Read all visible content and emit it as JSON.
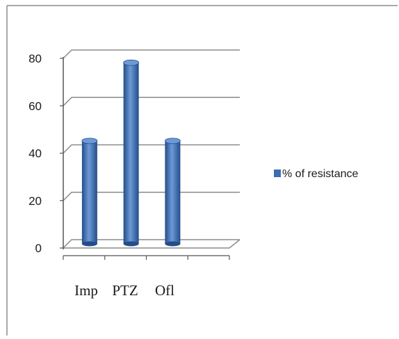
{
  "chart_data": {
    "type": "bar",
    "categories": [
      "Imp",
      "PTZ",
      "Ofl"
    ],
    "series": [
      {
        "name": "% of resistance",
        "values": [
          44,
          77,
          44
        ]
      }
    ],
    "yticks": [
      "0",
      "20",
      "40",
      "60",
      "80"
    ],
    "ylim": [
      0,
      80
    ],
    "grid": true,
    "legend_position": "right",
    "colors": {
      "bar": "#3a6db5",
      "bar_dark": "#234d8a",
      "bar_light": "#6d99d6",
      "grid": "#8a8a8a",
      "axis": "#555555",
      "frame": "#8c8c8c"
    }
  }
}
